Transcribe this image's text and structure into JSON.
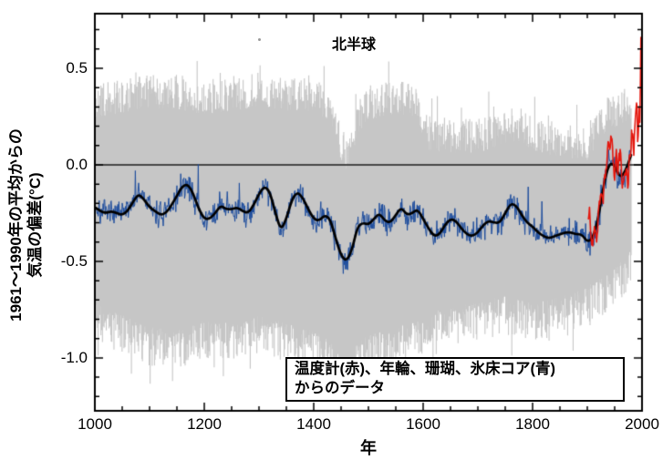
{
  "chart_data": {
    "type": "line",
    "title": "北半球",
    "xlabel": "年",
    "ylabel_line1": "1961～1990年の平均からの",
    "ylabel_line2": "気温の偏差(°C)",
    "annotation_line1": "温度計(赤)、年輪、珊瑚、氷床コア(青)",
    "annotation_line2": "からのデータ",
    "xlim": [
      1000,
      2000
    ],
    "ylim": [
      -1.274,
      0.783
    ],
    "x_ticks_major": [
      1000,
      1200,
      1400,
      1600,
      1800,
      2000
    ],
    "x_tick_minor_step": 50,
    "y_ticks_major": [
      0.5,
      0.0,
      -0.5,
      -1.0
    ],
    "y_tick_minor_step": 0.1,
    "y_minor_range": [
      -1.2,
      0.7
    ],
    "reference_line_y": 0.0,
    "grid": false,
    "legend_position": "bottom-center-box",
    "colors": {
      "uncertainty_band": "#c6c6c6",
      "reconstruction_annual": "#1f4e9e",
      "smoothed": "#000000",
      "instrumental": "#e4170e",
      "axis": "#000000",
      "reference_line": "#1a1a1a",
      "background": "#ffffff"
    },
    "series": [
      {
        "name": "uncertainty_band_95pct",
        "type": "band",
        "color": "#c6c6c6",
        "x_range": [
          1000,
          1980
        ],
        "anchors_x": [
          1000,
          1050,
          1100,
          1150,
          1200,
          1250,
          1300,
          1350,
          1400,
          1430,
          1450,
          1465,
          1480,
          1500,
          1550,
          1590,
          1605,
          1650,
          1700,
          1750,
          1780,
          1800,
          1850,
          1900,
          1930,
          1960,
          1980
        ],
        "upper": [
          0.28,
          0.31,
          0.33,
          0.33,
          0.3,
          0.32,
          0.34,
          0.32,
          0.31,
          0.27,
          0.05,
          0.0,
          0.2,
          0.27,
          0.3,
          0.28,
          0.12,
          0.1,
          0.1,
          0.15,
          0.16,
          0.1,
          0.08,
          0.06,
          0.2,
          0.25,
          0.28
        ],
        "lower": [
          -0.75,
          -0.82,
          -0.88,
          -0.9,
          -0.84,
          -0.86,
          -0.82,
          -0.86,
          -0.9,
          -0.95,
          -1.02,
          -1.05,
          -0.96,
          -0.92,
          -0.88,
          -0.84,
          -0.8,
          -0.78,
          -0.75,
          -0.72,
          -0.74,
          -0.76,
          -0.72,
          -0.66,
          -0.62,
          -0.55,
          -0.48
        ],
        "edge_jitter_amplitude": 0.18,
        "spike_probability": 0.03,
        "seed": 11
      },
      {
        "name": "reconstruction_annual",
        "type": "noisy-line",
        "color": "#1f4e9e",
        "x_range": [
          1000,
          1980
        ],
        "baseline": "smoothed_40yr",
        "noise_std": 0.1,
        "spike_amplitude": 0.3,
        "spike_probability": 0.04,
        "seed": 7
      },
      {
        "name": "smoothed_40yr",
        "type": "line",
        "color": "#000000",
        "x_start": 1000,
        "x_step": 10,
        "values": [
          -0.22,
          -0.24,
          -0.25,
          -0.24,
          -0.25,
          -0.26,
          -0.24,
          -0.19,
          -0.15,
          -0.18,
          -0.22,
          -0.24,
          -0.26,
          -0.25,
          -0.21,
          -0.16,
          -0.11,
          -0.1,
          -0.15,
          -0.23,
          -0.28,
          -0.28,
          -0.25,
          -0.21,
          -0.23,
          -0.23,
          -0.22,
          -0.24,
          -0.25,
          -0.21,
          -0.15,
          -0.11,
          -0.14,
          -0.25,
          -0.34,
          -0.28,
          -0.18,
          -0.14,
          -0.17,
          -0.23,
          -0.28,
          -0.29,
          -0.26,
          -0.28,
          -0.38,
          -0.47,
          -0.5,
          -0.44,
          -0.32,
          -0.3,
          -0.31,
          -0.28,
          -0.25,
          -0.29,
          -0.3,
          -0.26,
          -0.22,
          -0.26,
          -0.25,
          -0.23,
          -0.28,
          -0.33,
          -0.37,
          -0.36,
          -0.31,
          -0.28,
          -0.29,
          -0.33,
          -0.36,
          -0.37,
          -0.35,
          -0.31,
          -0.29,
          -0.3,
          -0.3,
          -0.25,
          -0.2,
          -0.21,
          -0.26,
          -0.3,
          -0.32,
          -0.35,
          -0.37,
          -0.38,
          -0.37,
          -0.36,
          -0.35,
          -0.35,
          -0.36,
          -0.36,
          -0.4,
          -0.38,
          -0.28,
          -0.1,
          0.01,
          0.0,
          -0.07,
          -0.03,
          0.05
        ]
      },
      {
        "name": "instrumental_thermometer",
        "type": "noisy-line",
        "color": "#e4170e",
        "x_range": [
          1902,
          1998
        ],
        "noise_std": 0.05,
        "seed": 3,
        "key_points": [
          [
            1902,
            -0.28
          ],
          [
            1904,
            -0.22
          ],
          [
            1907,
            -0.38
          ],
          [
            1910,
            -0.42
          ],
          [
            1913,
            -0.32
          ],
          [
            1917,
            -0.4
          ],
          [
            1921,
            -0.22
          ],
          [
            1925,
            -0.15
          ],
          [
            1929,
            -0.2
          ],
          [
            1932,
            -0.05
          ],
          [
            1935,
            -0.02
          ],
          [
            1938,
            0.12
          ],
          [
            1941,
            0.08
          ],
          [
            1944,
            0.14
          ],
          [
            1947,
            0.02
          ],
          [
            1950,
            -0.08
          ],
          [
            1953,
            0.08
          ],
          [
            1956,
            -0.05
          ],
          [
            1958,
            0.06
          ],
          [
            1961,
            0.06
          ],
          [
            1964,
            -0.12
          ],
          [
            1968,
            -0.05
          ],
          [
            1972,
            -0.02
          ],
          [
            1974,
            -0.12
          ],
          [
            1977,
            0.05
          ],
          [
            1980,
            0.08
          ],
          [
            1981,
            0.18
          ],
          [
            1983,
            0.16
          ],
          [
            1985,
            0.05
          ],
          [
            1987,
            0.2
          ],
          [
            1988,
            0.25
          ],
          [
            1990,
            0.32
          ],
          [
            1991,
            0.3
          ],
          [
            1992,
            0.12
          ],
          [
            1993,
            0.15
          ],
          [
            1995,
            0.3
          ],
          [
            1996,
            0.22
          ],
          [
            1997,
            0.4
          ],
          [
            1998,
            0.66
          ]
        ]
      }
    ]
  }
}
